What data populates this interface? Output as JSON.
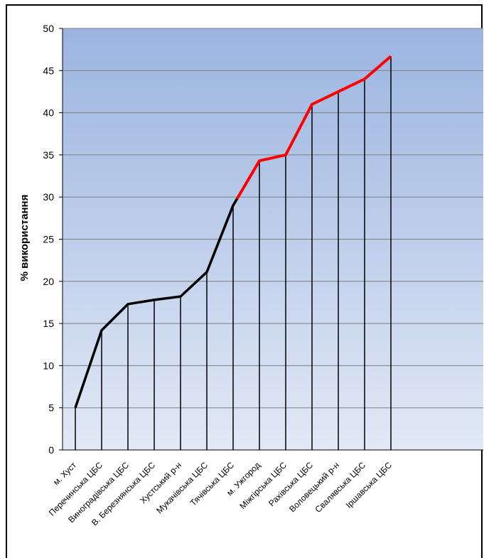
{
  "title_fragment": "",
  "chart_data": {
    "type": "line",
    "title": "",
    "xlabel": "",
    "ylabel": "% використання",
    "ylim": [
      0,
      50
    ],
    "yticks": [
      0,
      5,
      10,
      15,
      20,
      25,
      30,
      35,
      40,
      45,
      50
    ],
    "grid": true,
    "legend": "none",
    "categories": [
      "м. Хуст",
      "Перечинська ЦБС",
      "Виноградівська ЦБС",
      "В. Березнянська ЦБС",
      "Хустський р-н",
      "Мукачівська ЦБС",
      "Тячівська ЦБС",
      "м. Ужгород",
      "Міжгірська ЦБС",
      "Рахівська ЦБС",
      "Воловецький р-н",
      "Свалявська ЦБС",
      "Іршавська ЦБС"
    ],
    "series": [
      {
        "values": [
          5.0,
          14.2,
          17.3,
          17.8,
          18.2,
          21.1,
          29.0,
          34.3,
          35.0,
          41.0,
          42.5,
          44.0,
          46.7
        ]
      }
    ],
    "highlight_from_value": 29.8,
    "highlight_from_index": 6,
    "colors": {
      "line": "#000000",
      "highlight": "#ff0000",
      "grid": "#7f7f7f",
      "bg_top": "#9bb4e0",
      "bg_bottom": "#e2e9f6"
    }
  }
}
